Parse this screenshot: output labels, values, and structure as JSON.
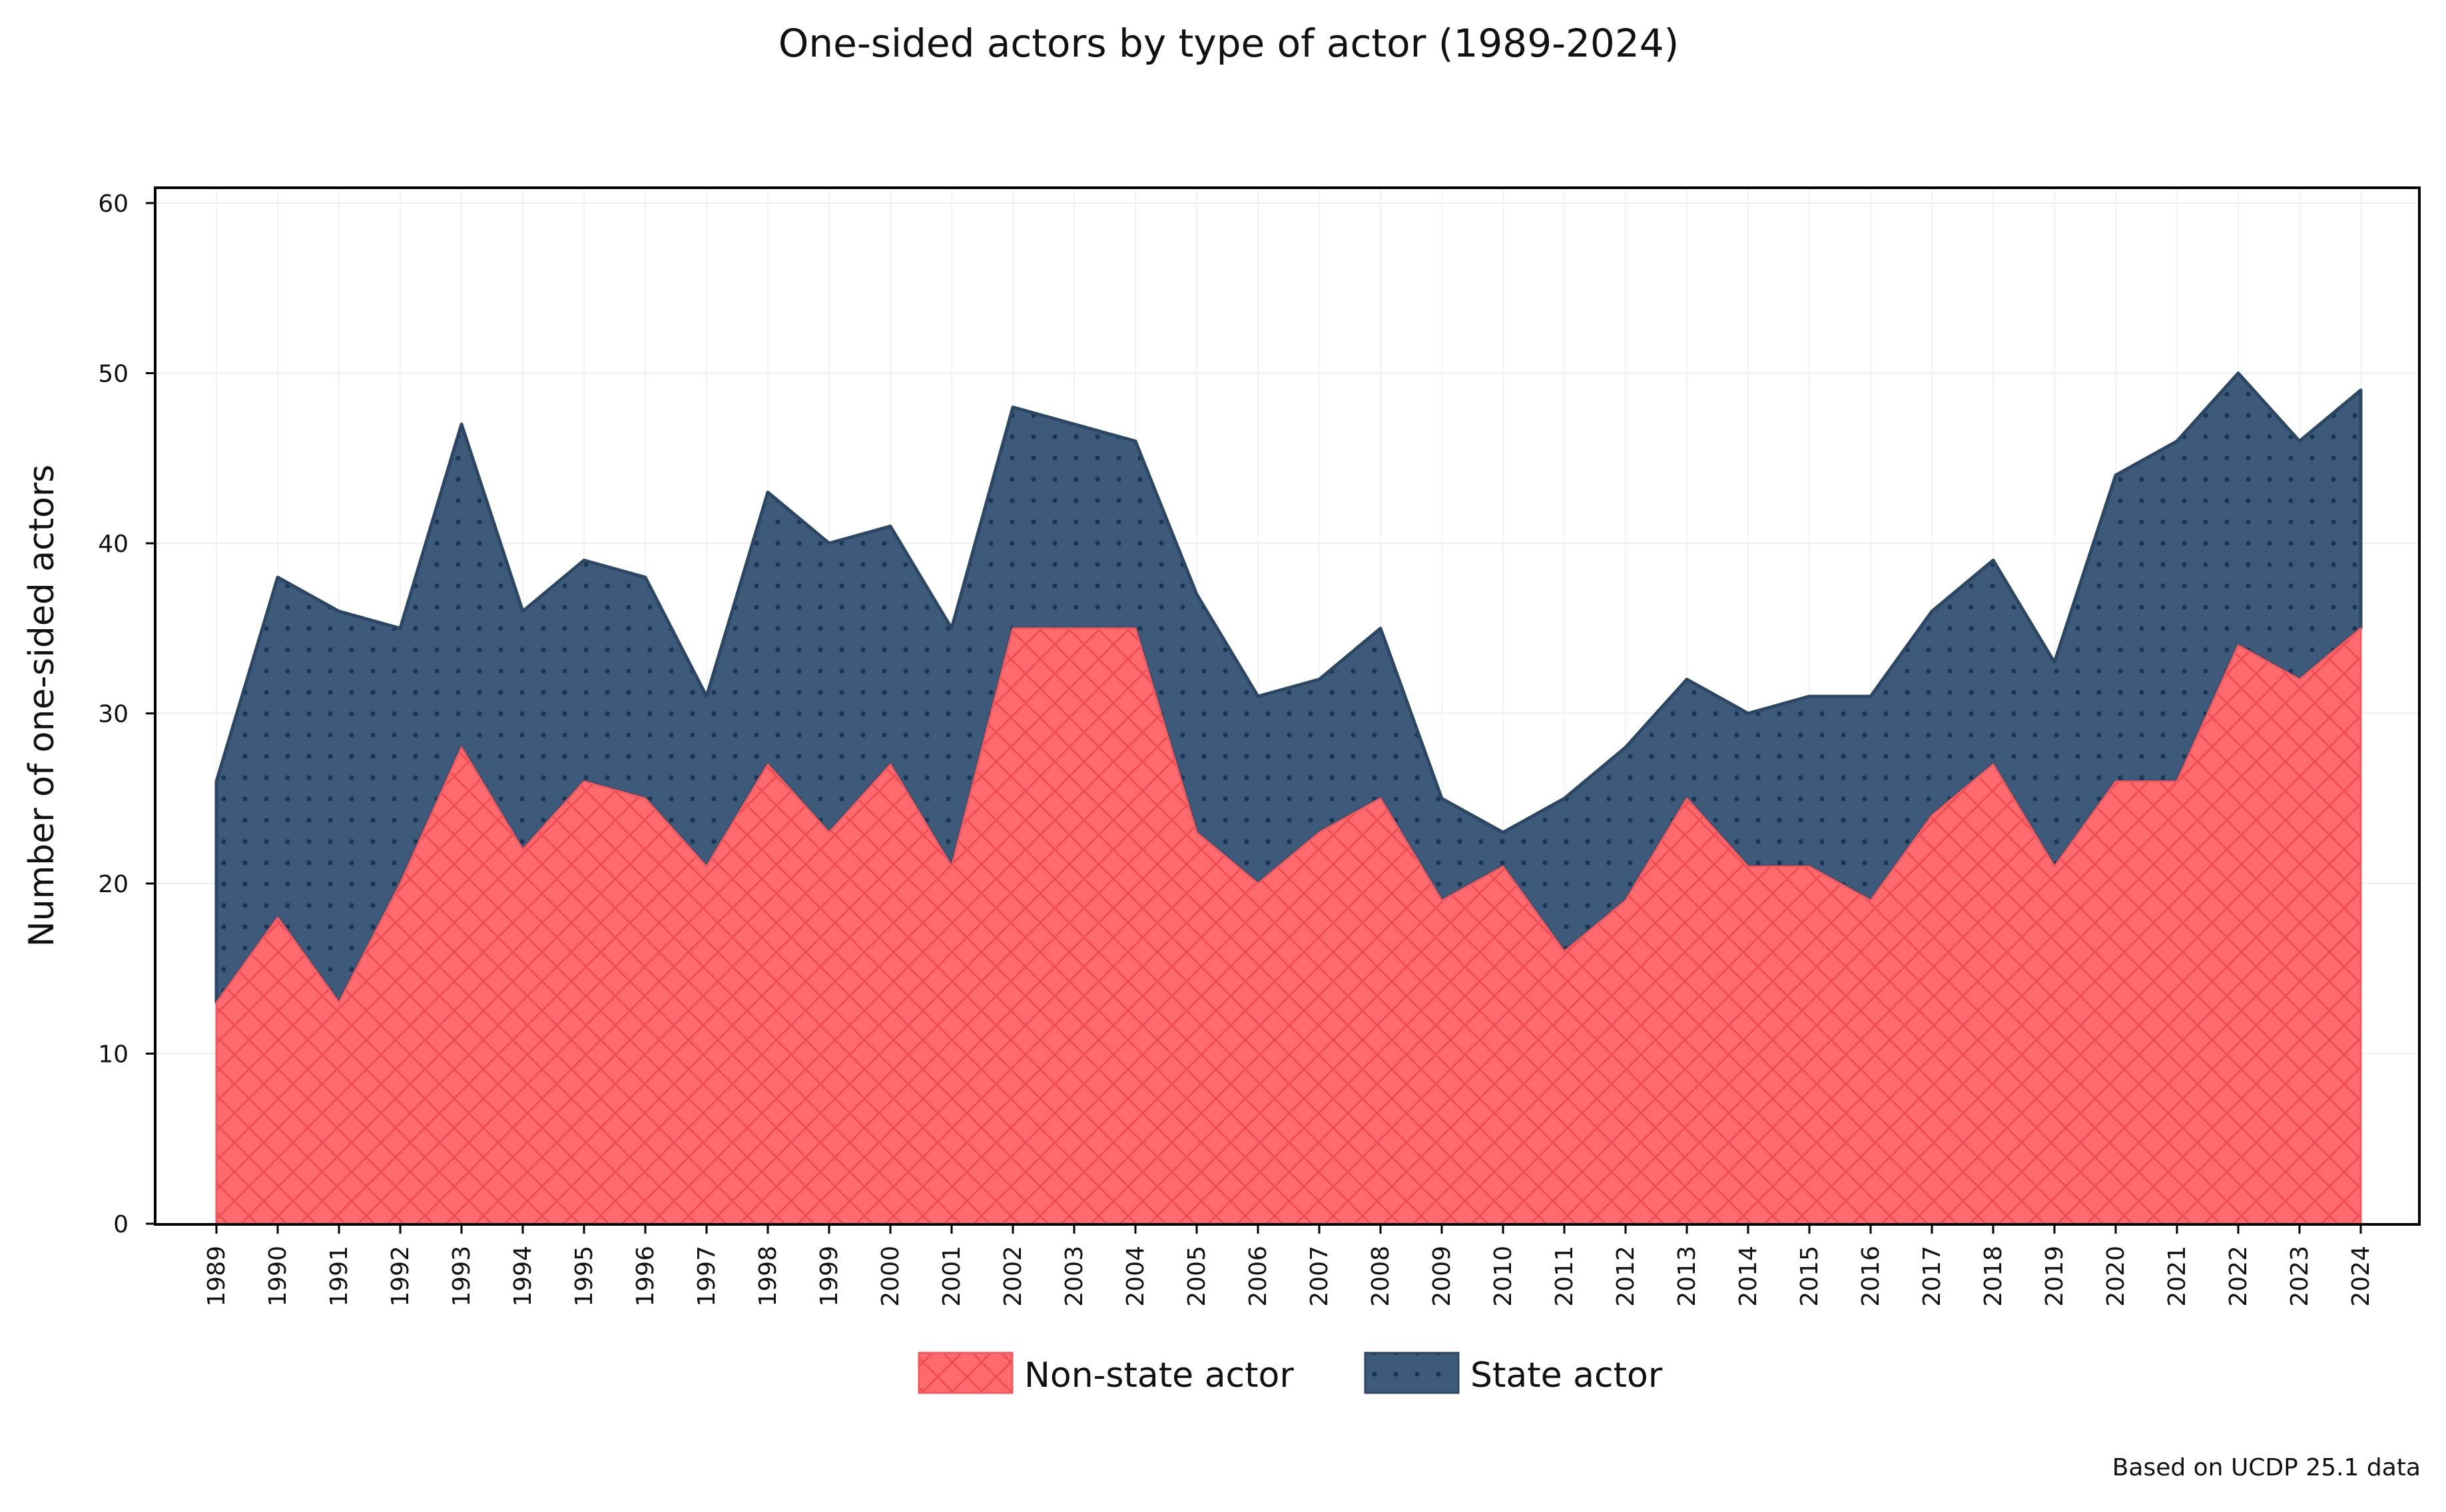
{
  "chart_data": {
    "type": "area",
    "stacked": true,
    "title": "One-sided actors by type of actor (1989-2024)",
    "xlabel": "",
    "ylabel": "Number of one-sided actors",
    "x": [
      "1989",
      "1990",
      "1991",
      "1992",
      "1993",
      "1994",
      "1995",
      "1996",
      "1997",
      "1998",
      "1999",
      "2000",
      "2001",
      "2002",
      "2003",
      "2004",
      "2005",
      "2006",
      "2007",
      "2008",
      "2009",
      "2010",
      "2011",
      "2012",
      "2013",
      "2014",
      "2015",
      "2016",
      "2017",
      "2018",
      "2019",
      "2020",
      "2021",
      "2022",
      "2023",
      "2024"
    ],
    "ylim": [
      0,
      60
    ],
    "yticks": [
      0,
      10,
      20,
      30,
      40,
      50,
      60
    ],
    "grid": true,
    "legend_position": "bottom-center",
    "series": [
      {
        "name": "Non-state actor",
        "pattern": "crosshatch",
        "color": "#ff6b6e",
        "edge": "#f05a5e",
        "values": [
          13,
          18,
          13,
          20,
          28,
          22,
          26,
          25,
          21,
          27,
          23,
          27,
          21,
          35,
          35,
          35,
          23,
          20,
          23,
          25,
          19,
          21,
          16,
          19,
          25,
          21,
          21,
          19,
          24,
          27,
          21,
          26,
          26,
          34,
          32,
          35
        ]
      },
      {
        "name": "State actor",
        "pattern": "dots",
        "color": "#3d5a7a",
        "edge": "#2c4763",
        "values": [
          13,
          20,
          23,
          15,
          19,
          14,
          13,
          13,
          10,
          16,
          17,
          14,
          14,
          13,
          12,
          11,
          14,
          11,
          9,
          10,
          6,
          2,
          9,
          9,
          7,
          9,
          10,
          12,
          12,
          12,
          12,
          18,
          20,
          16,
          14,
          14
        ]
      }
    ],
    "source_note": "Based on UCDP 25.1 data"
  }
}
